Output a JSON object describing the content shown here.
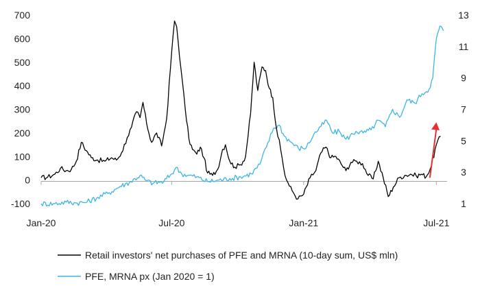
{
  "chart_data": {
    "type": "line",
    "title": "",
    "xlabel": "",
    "x_ticks": [
      "Jan-20",
      "Jul-20",
      "Jan-21",
      "Jul-21"
    ],
    "y_left": {
      "ticks": [
        -100,
        0,
        100,
        200,
        300,
        400,
        500,
        600,
        700
      ],
      "range": [
        -100,
        700
      ]
    },
    "y_right": {
      "ticks": [
        1,
        3,
        5,
        7,
        9,
        11,
        13
      ],
      "range": [
        1,
        13
      ]
    },
    "grid": false,
    "legend": "bottom",
    "series": [
      {
        "name": "Retail investors' net purchases of PFE and MRNA (10-day sum, US$ mln)",
        "axis": "left",
        "color": "#000000",
        "points": [
          [
            "2020-01-01",
            10
          ],
          [
            "2020-01-10",
            12
          ],
          [
            "2020-01-20",
            25
          ],
          [
            "2020-01-28",
            50
          ],
          [
            "2020-02-05",
            40
          ],
          [
            "2020-02-12",
            45
          ],
          [
            "2020-02-19",
            80
          ],
          [
            "2020-02-26",
            160
          ],
          [
            "2020-03-04",
            125
          ],
          [
            "2020-03-11",
            95
          ],
          [
            "2020-03-20",
            85
          ],
          [
            "2020-03-30",
            80
          ],
          [
            "2020-04-08",
            95
          ],
          [
            "2020-04-15",
            85
          ],
          [
            "2020-04-22",
            115
          ],
          [
            "2020-04-30",
            180
          ],
          [
            "2020-05-06",
            225
          ],
          [
            "2020-05-13",
            290
          ],
          [
            "2020-05-18",
            265
          ],
          [
            "2020-05-22",
            330
          ],
          [
            "2020-05-27",
            240
          ],
          [
            "2020-06-03",
            160
          ],
          [
            "2020-06-10",
            200
          ],
          [
            "2020-06-17",
            145
          ],
          [
            "2020-06-24",
            260
          ],
          [
            "2020-07-01",
            545
          ],
          [
            "2020-07-05",
            675
          ],
          [
            "2020-07-08",
            650
          ],
          [
            "2020-07-14",
            470
          ],
          [
            "2020-07-20",
            300
          ],
          [
            "2020-07-25",
            175
          ],
          [
            "2020-07-30",
            130
          ],
          [
            "2020-08-05",
            110
          ],
          [
            "2020-08-10",
            140
          ],
          [
            "2020-08-15",
            95
          ],
          [
            "2020-08-20",
            30
          ],
          [
            "2020-08-27",
            20
          ],
          [
            "2020-09-03",
            45
          ],
          [
            "2020-09-10",
            130
          ],
          [
            "2020-09-14",
            150
          ],
          [
            "2020-09-20",
            80
          ],
          [
            "2020-09-27",
            55
          ],
          [
            "2020-10-05",
            65
          ],
          [
            "2020-10-12",
            100
          ],
          [
            "2020-10-19",
            280
          ],
          [
            "2020-10-24",
            500
          ],
          [
            "2020-10-29",
            380
          ],
          [
            "2020-11-04",
            480
          ],
          [
            "2020-11-09",
            465
          ],
          [
            "2020-11-14",
            390
          ],
          [
            "2020-11-19",
            350
          ],
          [
            "2020-11-24",
            220
          ],
          [
            "2020-11-30",
            130
          ],
          [
            "2020-12-06",
            20
          ],
          [
            "2020-12-12",
            -25
          ],
          [
            "2020-12-18",
            -55
          ],
          [
            "2020-12-24",
            -80
          ],
          [
            "2021-01-01",
            -60
          ],
          [
            "2021-01-10",
            10
          ],
          [
            "2021-01-18",
            40
          ],
          [
            "2021-01-25",
            115
          ],
          [
            "2021-02-01",
            140
          ],
          [
            "2021-02-08",
            95
          ],
          [
            "2021-02-15",
            100
          ],
          [
            "2021-02-22",
            70
          ],
          [
            "2021-03-01",
            40
          ],
          [
            "2021-03-08",
            75
          ],
          [
            "2021-03-16",
            80
          ],
          [
            "2021-03-24",
            70
          ],
          [
            "2021-04-01",
            20
          ],
          [
            "2021-04-08",
            5
          ],
          [
            "2021-04-15",
            80
          ],
          [
            "2021-04-22",
            10
          ],
          [
            "2021-04-29",
            -70
          ],
          [
            "2021-05-06",
            -30
          ],
          [
            "2021-05-14",
            10
          ],
          [
            "2021-05-22",
            20
          ],
          [
            "2021-05-30",
            25
          ],
          [
            "2021-06-07",
            18
          ],
          [
            "2021-06-14",
            25
          ],
          [
            "2021-06-21",
            15
          ],
          [
            "2021-06-28",
            60
          ],
          [
            "2021-07-05",
            150
          ],
          [
            "2021-07-11",
            185
          ]
        ]
      },
      {
        "name": "PFE, MRNA px (Jan 2020 = 1)",
        "axis": "right",
        "color": "#3bb4e6",
        "points": [
          [
            "2020-01-01",
            1.0
          ],
          [
            "2020-01-20",
            1.0
          ],
          [
            "2020-02-05",
            1.1
          ],
          [
            "2020-02-20",
            1.05
          ],
          [
            "2020-03-05",
            1.1
          ],
          [
            "2020-03-20",
            1.4
          ],
          [
            "2020-04-05",
            1.7
          ],
          [
            "2020-04-20",
            2.1
          ],
          [
            "2020-05-05",
            2.4
          ],
          [
            "2020-05-18",
            2.8
          ],
          [
            "2020-05-25",
            2.5
          ],
          [
            "2020-06-05",
            2.3
          ],
          [
            "2020-06-20",
            2.4
          ],
          [
            "2020-07-01",
            2.9
          ],
          [
            "2020-07-07",
            3.3
          ],
          [
            "2020-07-15",
            2.9
          ],
          [
            "2020-07-25",
            2.8
          ],
          [
            "2020-08-05",
            2.7
          ],
          [
            "2020-08-20",
            2.4
          ],
          [
            "2020-09-05",
            2.5
          ],
          [
            "2020-09-20",
            2.6
          ],
          [
            "2020-10-05",
            2.7
          ],
          [
            "2020-10-20",
            2.9
          ],
          [
            "2020-11-01",
            3.5
          ],
          [
            "2020-11-10",
            4.6
          ],
          [
            "2020-11-20",
            5.8
          ],
          [
            "2020-11-28",
            6.0
          ],
          [
            "2020-12-05",
            5.3
          ],
          [
            "2020-12-15",
            4.9
          ],
          [
            "2020-12-25",
            4.5
          ],
          [
            "2021-01-05",
            4.6
          ],
          [
            "2021-01-15",
            5.4
          ],
          [
            "2021-01-25",
            5.9
          ],
          [
            "2021-02-02",
            6.3
          ],
          [
            "2021-02-10",
            5.5
          ],
          [
            "2021-02-20",
            5.6
          ],
          [
            "2021-03-01",
            5.1
          ],
          [
            "2021-03-15",
            5.6
          ],
          [
            "2021-03-25",
            5.5
          ],
          [
            "2021-04-05",
            5.7
          ],
          [
            "2021-04-15",
            6.3
          ],
          [
            "2021-04-25",
            5.9
          ],
          [
            "2021-05-05",
            7.0
          ],
          [
            "2021-05-15",
            6.5
          ],
          [
            "2021-05-25",
            7.6
          ],
          [
            "2021-06-05",
            7.4
          ],
          [
            "2021-06-15",
            8.0
          ],
          [
            "2021-06-25",
            8.3
          ],
          [
            "2021-06-30",
            9.0
          ],
          [
            "2021-07-05",
            11.5
          ],
          [
            "2021-07-10",
            12.3
          ],
          [
            "2021-07-15",
            12.0
          ]
        ]
      }
    ],
    "annotations": [
      {
        "type": "arrow",
        "color": "#e8302c",
        "from": [
          "2021-06-26",
          10
        ],
        "to": [
          "2021-07-05",
          245
        ]
      }
    ]
  }
}
